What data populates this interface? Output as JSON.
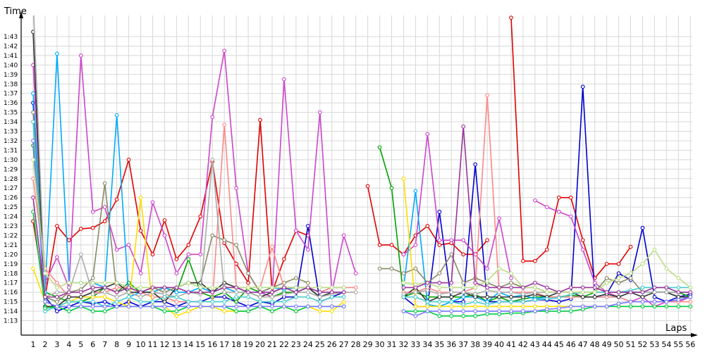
{
  "chart_data": {
    "type": "line",
    "ylabel": "Time",
    "xlabel": "Laps",
    "x": [
      1,
      2,
      3,
      4,
      5,
      6,
      7,
      8,
      9,
      10,
      11,
      12,
      13,
      14,
      15,
      16,
      17,
      18,
      19,
      20,
      21,
      22,
      23,
      24,
      25,
      26,
      27,
      28,
      29,
      30,
      31,
      32,
      33,
      34,
      35,
      36,
      37,
      38,
      39,
      40,
      41,
      42,
      43,
      44,
      45,
      46,
      47,
      48,
      49,
      50,
      51,
      52,
      53,
      54,
      55,
      56
    ],
    "y_ticks": [
      "1:13",
      "1:14",
      "1:15",
      "1:16",
      "1:17",
      "1:18",
      "1:19",
      "1:20",
      "1:21",
      "1:22",
      "1:23",
      "1:24",
      "1:25",
      "1:26",
      "1:27",
      "1:28",
      "1:29",
      "1:30",
      "1:31",
      "1:32",
      "1:33",
      "1:34",
      "1:35",
      "1:36",
      "1:37",
      "1:38",
      "1:39",
      "1:40",
      "1:41",
      "1:42",
      "1:43"
    ],
    "ylim": [
      72,
      108
    ],
    "grid": true,
    "series": [
      {
        "color": "#e00000",
        "values": [
          83.5,
          75.5,
          83,
          81.5,
          82.7,
          82.8,
          83.5,
          85.8,
          90,
          82.5,
          80,
          83.6,
          79.5,
          81,
          84,
          89.8,
          81.2,
          79,
          77,
          94.2,
          76,
          79.5,
          82.5,
          82,
          null,
          null,
          null,
          null,
          87.2,
          81,
          81,
          80,
          82,
          83,
          81,
          81.2,
          80,
          80,
          81.5,
          null,
          105,
          79.3,
          79.3,
          80.5,
          86,
          86,
          81.5,
          77.5,
          79,
          79,
          80.8,
          null,
          null,
          null,
          null,
          null
        ]
      },
      {
        "color": "#0000cc",
        "values": [
          96,
          75.5,
          74,
          74.5,
          75,
          74.8,
          75,
          74.5,
          75,
          74.5,
          75,
          75,
          74.5,
          75,
          75,
          75.5,
          75.5,
          75,
          74.5,
          75,
          74.8,
          75.5,
          75.5,
          83,
          75,
          75.5,
          76,
          null,
          null,
          null,
          null,
          75.5,
          74.5,
          74.5,
          84.5,
          75,
          75,
          89.5,
          75,
          75,
          75,
          75,
          75.2,
          75.2,
          75,
          75.3,
          97.7,
          75.5,
          75.8,
          78,
          77.3,
          82.8,
          75.5,
          75,
          75.5,
          75.8
        ]
      },
      {
        "color": "#00a000",
        "values": [
          91.5,
          76,
          75.5,
          75,
          75,
          75.5,
          76.5,
          76,
          77,
          76,
          76,
          76.5,
          76,
          79.5,
          76,
          75.5,
          76,
          75,
          76.5,
          76,
          75.5,
          76,
          76,
          76.5,
          75.5,
          null,
          null,
          null,
          null,
          91.3,
          87,
          75.5,
          76,
          75.5,
          75.5,
          75.5,
          75.5,
          75.8,
          75,
          75.5,
          75,
          75.3,
          75.5,
          75.5,
          75.5,
          75.7,
          75.5,
          76,
          76,
          76,
          76,
          76,
          76,
          76,
          76,
          75.5
        ]
      },
      {
        "color": "#cc44cc",
        "values": [
          100,
          77,
          79.7,
          76.5,
          101,
          84.5,
          85,
          80.5,
          81,
          78,
          85.5,
          82,
          78,
          80,
          80,
          94.5,
          101.5,
          87,
          78,
          76,
          75.5,
          98.5,
          82.5,
          80.5,
          95,
          76,
          82,
          78,
          null,
          null,
          null,
          80,
          81,
          92.7,
          81.5,
          81.5,
          81.5,
          80,
          78.5,
          83.8,
          77.5,
          null,
          85.7,
          85,
          84.5,
          84,
          80.5,
          77,
          76,
          75.5,
          75,
          75.5,
          74.5,
          75,
          75,
          75.5
        ]
      },
      {
        "color": "#00aaff",
        "values": [
          97,
          76,
          101.2,
          77,
          77,
          77,
          76.5,
          94.7,
          75.5,
          76,
          76,
          76.5,
          76,
          76,
          76.5,
          76,
          76.5,
          76,
          76,
          76,
          76.5,
          76.3,
          76.5,
          76.5,
          76,
          76.5,
          76.5,
          null,
          null,
          null,
          null,
          76.5,
          86.7,
          74.7,
          74.5,
          75,
          75.5,
          75.5,
          75,
          76,
          75.5,
          75.7,
          75.3,
          75.5,
          75.5,
          75.5,
          75.5,
          75.5,
          75.5,
          75.5,
          76,
          76,
          76,
          76,
          75.5,
          75.5
        ]
      },
      {
        "color": "#888866",
        "values": [
          95,
          75.5,
          75,
          76,
          76.3,
          77.5,
          87.5,
          76,
          76.5,
          76,
          76.5,
          76,
          76.5,
          77,
          77,
          82,
          81.5,
          81,
          78,
          76,
          76.5,
          77,
          77.5,
          77,
          null,
          null,
          null,
          null,
          null,
          78.5,
          78.5,
          78,
          78.5,
          77,
          78,
          80,
          77,
          77.5,
          77,
          76.5,
          77,
          76.5,
          76.5,
          76,
          76,
          76,
          76,
          76,
          77.5,
          77,
          77.5,
          76,
          76,
          76,
          75.5,
          75.5
        ]
      },
      {
        "color": "#ff8888",
        "values": [
          88,
          78.5,
          77,
          75.5,
          75.5,
          76,
          76,
          76.5,
          76.5,
          76,
          75.5,
          75.5,
          75,
          75,
          75,
          75,
          93.7,
          76.5,
          76.5,
          76.5,
          80.8,
          76.5,
          76.5,
          76.5,
          76,
          76.5,
          76.5,
          76.5,
          null,
          null,
          null,
          76,
          76,
          76.5,
          76,
          76,
          76,
          76.5,
          96.8,
          76,
          76,
          76,
          76,
          75.5,
          75.5,
          75.5,
          75.5,
          75.5,
          75.5,
          75.5,
          75,
          75,
          75,
          75,
          75,
          75
        ]
      },
      {
        "color": "#ffdd00",
        "values": [
          78.5,
          75,
          74.5,
          75,
          75.5,
          75.5,
          75.5,
          75,
          74.5,
          86,
          74.5,
          74.5,
          73.5,
          74,
          74.5,
          74.5,
          74,
          74,
          74,
          74.5,
          74,
          74.5,
          74,
          74.5,
          74,
          74,
          75,
          null,
          null,
          null,
          null,
          88,
          74.5,
          74.5,
          74.5,
          74.5,
          74.5,
          74.5,
          74.5,
          74.5,
          74.5,
          74.5,
          74.5,
          74.5,
          74.5,
          74.5,
          74.5,
          74.5,
          74.5,
          74.5,
          74.5,
          74.5,
          74.5,
          74.5,
          74.5,
          74.5
        ]
      },
      {
        "color": "#333333",
        "values": [
          103.5,
          74.5,
          74.5,
          75.5,
          75.5,
          76,
          76.5,
          77,
          76,
          76,
          76,
          75,
          76.5,
          77,
          77,
          76,
          77,
          76.5,
          76,
          75.5,
          76,
          76.5,
          76.5,
          76.5,
          75.5,
          76,
          76,
          null,
          null,
          null,
          null,
          75.5,
          76.5,
          75,
          75.5,
          75.5,
          76,
          75.5,
          75.5,
          75.5,
          75.5,
          75.5,
          75.8,
          75.5,
          76,
          76,
          75.5,
          75.5,
          75.8,
          75.5,
          76,
          75.5,
          76,
          76,
          75.5,
          75.5
        ]
      },
      {
        "color": "#aaaaaa",
        "values": [
          107,
          75.5,
          76,
          76,
          80,
          75.8,
          76,
          75.5,
          76,
          75.5,
          76,
          75.8,
          75.5,
          76,
          75.8,
          90,
          76,
          76,
          76,
          75.5,
          75.5,
          75.8,
          76,
          76,
          75.5,
          75.8,
          76,
          76,
          null,
          null,
          null,
          75.8,
          76,
          76.2,
          75.8,
          76,
          76,
          75.8,
          76.2,
          76,
          76,
          75.8,
          76,
          76,
          76,
          76,
          76,
          76,
          76,
          76,
          76,
          76,
          76,
          76,
          76,
          76
        ]
      },
      {
        "color": "#44cccc",
        "values": [
          94,
          74,
          74.5,
          75,
          75,
          75,
          74.5,
          75,
          75.5,
          75,
          75,
          75.5,
          75.5,
          75,
          75,
          75,
          75,
          75.5,
          75.5,
          75,
          75,
          75,
          75.5,
          75.5,
          75,
          75.5,
          75.5,
          null,
          null,
          null,
          null,
          75.5,
          75.5,
          75,
          75,
          75,
          74.7,
          75,
          74.7,
          75,
          75,
          75,
          75.2,
          75.3,
          75.4,
          75.8,
          76,
          76,
          76,
          76,
          76.2,
          76.5,
          76.5,
          76.5,
          76.5,
          76.5
        ]
      },
      {
        "color": "#00cc44",
        "values": [
          84.5,
          74.3,
          74.5,
          74,
          74.5,
          74,
          74,
          74.5,
          74.5,
          74.5,
          74.5,
          74,
          74,
          74.5,
          74.5,
          74.5,
          74.5,
          74,
          74,
          74.5,
          74,
          74.5,
          74,
          74.5,
          74.5,
          74.5,
          74.5,
          null,
          null,
          null,
          null,
          74,
          74,
          74,
          73.5,
          73.5,
          73.5,
          73.5,
          73.7,
          73.7,
          73.8,
          73.8,
          74,
          74,
          74,
          74,
          74.2,
          74.5,
          74.5,
          74.5,
          74.5,
          74.5,
          74.5,
          74.5,
          74.5,
          74.5
        ]
      },
      {
        "color": "#7777ff",
        "values": [
          92,
          75,
          74.5,
          74.5,
          74.5,
          74.5,
          74.5,
          74.5,
          74.5,
          74.5,
          74.5,
          74.5,
          74.5,
          74.5,
          74.5,
          74.5,
          74.5,
          74.5,
          74.5,
          74.5,
          74.5,
          74.5,
          74.5,
          74.5,
          74.5,
          74.5,
          74.5,
          null,
          null,
          null,
          null,
          74,
          73.5,
          74,
          74,
          74,
          74,
          74,
          74,
          74,
          74,
          74,
          74,
          74.2,
          74.3,
          74.5,
          74.5,
          74.5,
          74.5,
          74.8,
          75,
          75,
          75,
          75,
          75.2,
          75.5
        ]
      },
      {
        "color": "#bbdd88",
        "values": [
          90,
          78,
          76.5,
          77,
          77,
          77,
          77,
          77,
          76.5,
          76.5,
          76.5,
          76.5,
          76.5,
          77,
          76.5,
          76.5,
          76.5,
          76.5,
          76.5,
          76.5,
          76.5,
          76.5,
          76.5,
          76.5,
          76.5,
          76.5,
          76.5,
          null,
          null,
          null,
          null,
          77,
          76.8,
          77,
          76.5,
          76.5,
          76.5,
          76.5,
          77.2,
          78.5,
          78,
          76.5,
          76.5,
          76,
          76,
          76,
          76,
          76,
          77,
          77.5,
          78,
          79,
          80.5,
          78.5,
          77.5,
          76.5
        ]
      },
      {
        "color": "#993399",
        "values": [
          86,
          75.5,
          75.5,
          76,
          76,
          76.5,
          76.5,
          76,
          76.5,
          76,
          76.5,
          76.5,
          76.5,
          76,
          76,
          76,
          76.5,
          76.5,
          76,
          76,
          76,
          76.5,
          76,
          76.5,
          76,
          76,
          76,
          null,
          null,
          null,
          null,
          76.5,
          76.5,
          77,
          77,
          77,
          93.5,
          77,
          76.5,
          76.5,
          76.5,
          76.5,
          77,
          76.5,
          76,
          76.5,
          76.5,
          76.5,
          76,
          76,
          76,
          76,
          76.5,
          76.5,
          76,
          76
        ]
      }
    ]
  }
}
